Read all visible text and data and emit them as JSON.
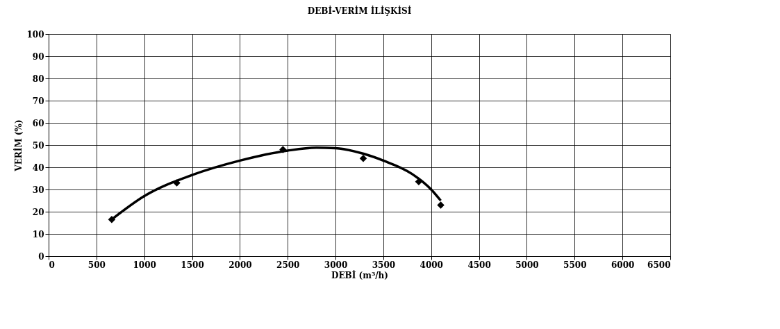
{
  "chart_data": {
    "type": "scatter",
    "title": "DEBİ-VERİM İLİŞKİSİ",
    "xlabel": "DEBİ (m³/h)",
    "ylabel": "VERİM (%)",
    "xlim": [
      0,
      6500
    ],
    "xticks": [
      0,
      500,
      1000,
      1500,
      2000,
      2500,
      3000,
      3500,
      4000,
      4500,
      5000,
      5500,
      6000,
      6500
    ],
    "ylim": [
      0,
      100
    ],
    "yticks": [
      0,
      10,
      20,
      30,
      40,
      50,
      60,
      70,
      80,
      90,
      100
    ],
    "grid": true,
    "marker": "diamond",
    "series": [
      {
        "type": "line",
        "color": "#000000",
        "line_style": "solid",
        "marker": "none",
        "x": [
          660,
          1000,
          1500,
          2000,
          2500,
          2800,
          3000,
          3300,
          3500,
          3800,
          4000,
          4100
        ],
        "values": [
          16.5,
          27,
          36.5,
          43,
          47.5,
          48.8,
          48.6,
          46,
          43,
          37,
          30,
          25
        ]
      },
      {
        "color": "#000000",
        "x": [
          660,
          1340,
          2450,
          3290,
          3870,
          4100
        ],
        "values": [
          16.5,
          33,
          48,
          44,
          33.5,
          23
        ]
      }
    ]
  }
}
